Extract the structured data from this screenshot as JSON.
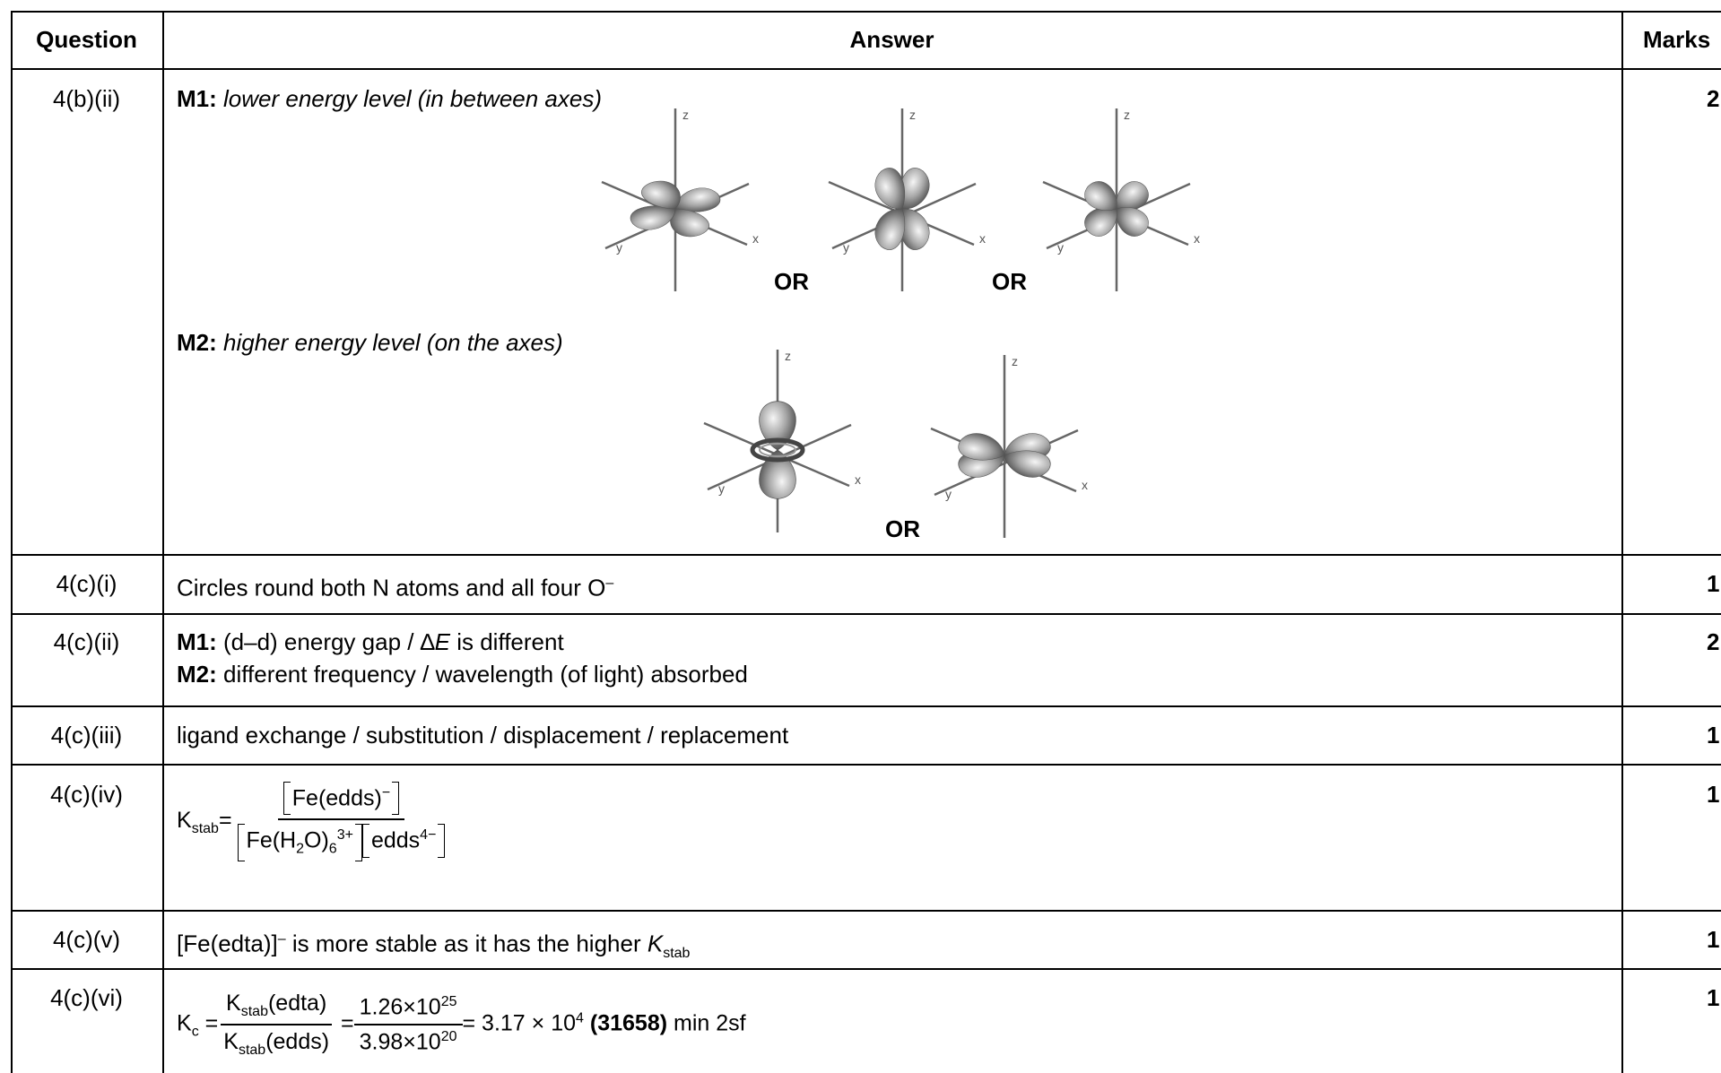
{
  "header": {
    "question": "Question",
    "answer": "Answer",
    "marks": "Marks"
  },
  "rows": [
    {
      "question": "4(b)(ii)",
      "m1_label": "M1:",
      "m1_text": "lower energy level (in between axes)",
      "m2_label": "M2:",
      "m2_text": "higher energy level (on the axes)",
      "or_labels": [
        "OR",
        "OR",
        "OR"
      ],
      "axis_labels": {
        "z": "z",
        "y": "y",
        "x": "x"
      },
      "marks": "2"
    },
    {
      "question": "4(c)(i)",
      "answer": "Circles round both N atoms and all four O",
      "answer_sup": "–",
      "marks": "1"
    },
    {
      "question": "4(c)(ii)",
      "m1_label": "M1:",
      "m1_text": "(d–d) energy gap / ∆",
      "m1_var": "E",
      "m1_rest": "is different",
      "m2_label": "M2:",
      "m2_text": "different frequency / wavelength (of light) absorbed",
      "marks": "2"
    },
    {
      "question": "4(c)(iii)",
      "answer": "ligand exchange / substitution / displacement / replacement",
      "marks": "1"
    },
    {
      "question": "4(c)(iv)",
      "k": "K",
      "k_sub": "stab",
      "eq": "=",
      "num": "Fe(edds)",
      "num_sup": "−",
      "den_a": "Fe(H",
      "den_a_sub": "2",
      "den_b": "O)",
      "den_b_sub": "6",
      "den_b_sup": "3+",
      "den_c": "edds",
      "den_c_sup": "4−",
      "marks": "1"
    },
    {
      "question": "4(c)(v)",
      "answer_a": "[Fe(edta)]",
      "answer_sup": "–",
      "answer_b": "is more stable as it has the higher",
      "k": "K",
      "k_sub": "stab",
      "marks": "1"
    },
    {
      "question": "4(c)(vi)",
      "k": "K",
      "k_sub": "c",
      "eq1": "=",
      "num1": "K",
      "num1_sub": "stab",
      "num1_rest": "(edta)",
      "den1": "K",
      "den1_sub": "stab",
      "den1_rest": "(edds)",
      "eq2": "=",
      "num2": "1.26×10",
      "num2_sup": "25",
      "den2": "3.98×10",
      "den2_sup": "20",
      "result": "= 3.17 × 10",
      "result_sup": "4",
      "result_bold": "(31658)",
      "result_tail": "min 2sf",
      "marks": "1"
    }
  ]
}
